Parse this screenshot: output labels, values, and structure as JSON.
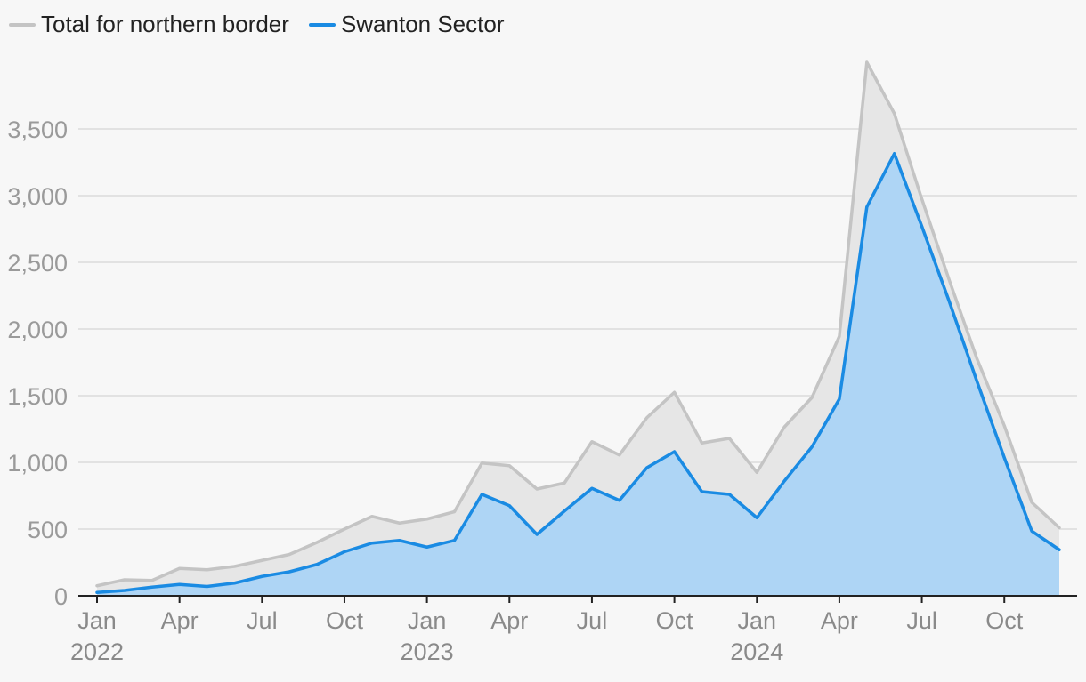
{
  "chart_data": {
    "type": "area",
    "title": "",
    "xlabel": "",
    "ylabel": "",
    "ylim": [
      0,
      4000
    ],
    "yticks": [
      0,
      500,
      1000,
      1500,
      2000,
      2500,
      3000,
      3500
    ],
    "ytick_labels": [
      "0",
      "500",
      "1,000",
      "1,500",
      "2,000",
      "2,500",
      "3,000",
      "3,500"
    ],
    "grid": true,
    "legend_position": "top-left",
    "x_ticks": [
      {
        "index": 0,
        "label": "Jan",
        "year": "2022"
      },
      {
        "index": 3,
        "label": "Apr",
        "year": ""
      },
      {
        "index": 6,
        "label": "Jul",
        "year": ""
      },
      {
        "index": 9,
        "label": "Oct",
        "year": ""
      },
      {
        "index": 12,
        "label": "Jan",
        "year": "2023"
      },
      {
        "index": 15,
        "label": "Apr",
        "year": ""
      },
      {
        "index": 18,
        "label": "Jul",
        "year": ""
      },
      {
        "index": 21,
        "label": "Oct",
        "year": ""
      },
      {
        "index": 24,
        "label": "Jan",
        "year": "2024"
      },
      {
        "index": 27,
        "label": "Apr",
        "year": ""
      },
      {
        "index": 30,
        "label": "Jul",
        "year": ""
      },
      {
        "index": 33,
        "label": "Oct",
        "year": ""
      }
    ],
    "months": [
      "2022-01",
      "2022-02",
      "2022-03",
      "2022-04",
      "2022-05",
      "2022-06",
      "2022-07",
      "2022-08",
      "2022-09",
      "2022-10",
      "2022-11",
      "2022-12",
      "2023-01",
      "2023-02",
      "2023-03",
      "2023-04",
      "2023-05",
      "2023-06",
      "2023-07",
      "2023-08",
      "2023-09",
      "2023-10",
      "2023-11",
      "2023-12",
      "2024-01",
      "2024-02",
      "2024-03",
      "2024-04",
      "2024-05",
      "2024-06",
      "2024-07",
      "2024-08",
      "2024-09",
      "2024-10",
      "2024-11",
      "2024-12"
    ],
    "series": [
      {
        "name": "Total for northern border",
        "color": "#c4c4c4",
        "fill": "#e6e6e6",
        "values": [
          75,
          120,
          115,
          205,
          195,
          220,
          265,
          310,
          400,
          500,
          595,
          545,
          575,
          630,
          995,
          975,
          800,
          845,
          1155,
          1055,
          1335,
          1525,
          1145,
          1180,
          925,
          1265,
          1485,
          1945,
          4000,
          3615,
          2975,
          2365,
          1780,
          1275,
          700,
          510
        ]
      },
      {
        "name": "Swanton Sector",
        "color": "#1a8be3",
        "fill": "#aed5f5",
        "values": [
          25,
          40,
          65,
          85,
          70,
          95,
          145,
          180,
          235,
          330,
          395,
          415,
          365,
          415,
          760,
          675,
          460,
          635,
          805,
          715,
          960,
          1080,
          780,
          760,
          585,
          860,
          1115,
          1475,
          2915,
          3315,
          2770,
          2205,
          1610,
          1035,
          485,
          345
        ]
      }
    ]
  }
}
